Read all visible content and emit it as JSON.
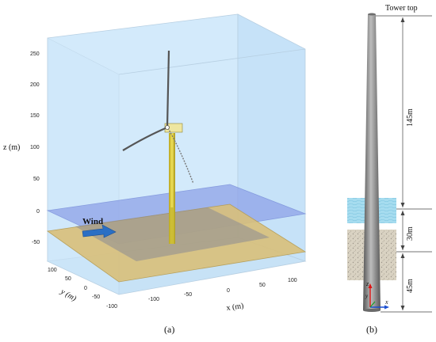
{
  "panel_a": {
    "caption": "(a)",
    "z_axis_label": "z (m)",
    "y_axis_label": "y (m)",
    "x_axis_label": "x (m)",
    "z_ticks": [
      "250",
      "200",
      "150",
      "100",
      "50",
      "0",
      "-50"
    ],
    "y_ticks": [
      "100",
      "50",
      "0",
      "-50",
      "-100"
    ],
    "x_ticks": [
      "-100",
      "-50",
      "0",
      "50",
      "100"
    ],
    "wind_label": "Wind",
    "colors": {
      "air": "#cfe8fb",
      "water_plane": "#8ea2e8",
      "seabed": "#d9c07a",
      "tower": "#e6d232",
      "wind_arrow": "#2b6fc4"
    }
  },
  "panel_b": {
    "caption": "(b)",
    "tower_top_label": "Tower top",
    "dim_upper": "145m",
    "dim_middle": "30m",
    "dim_lower": "45m",
    "axis_z": "z",
    "axis_x": "x",
    "axis_y": "y",
    "colors": {
      "tower": "#8a8a8a",
      "water": "#9fd8ea",
      "soil": "#d8d0c0"
    }
  }
}
